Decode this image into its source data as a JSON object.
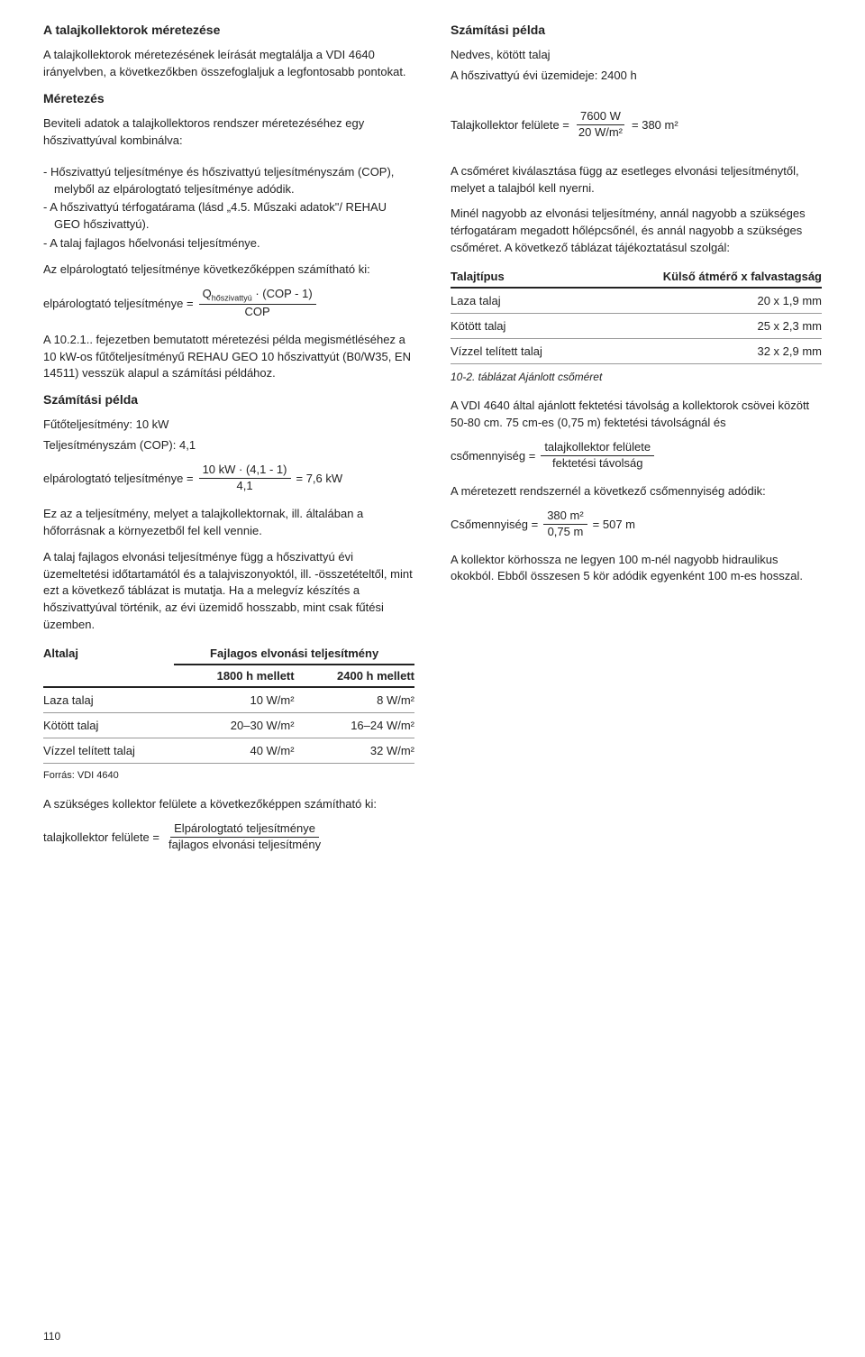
{
  "left": {
    "h_main": "A talajkollektorok méretezése",
    "p_intro": "A talajkollektorok méretezésének leírását megtalálja a VDI 4640 irányelvben, a következőkben összefoglaljuk a legfontosabb pontokat.",
    "h_sizing": "Méretezés",
    "p_sizing": "Beviteli adatok a talajkollektoros rendszer méretezéséhez egy hőszivattyúval kombinálva:",
    "li1": "Hőszivattyú teljesítménye és hőszivattyú teljesítményszám (COP), melyből az elpárologtató teljesítménye adódik.",
    "li2": "A hőszivattyú térfogatárama (lásd „4.5. Műszaki adatok\"/ REHAU GEO hőszivattyú).",
    "li3": "A talaj fajlagos hőelvonási teljesítménye.",
    "p_evap": "Az elpárologtató teljesítménye következőképpen számítható ki:",
    "f1_lhs": "elpárologtató teljesítménye  =",
    "f1_num_a": "Q",
    "f1_num_sub": "hőszivattyú",
    "f1_num_b": " · (COP - 1)",
    "f1_den": "COP",
    "p_ex_intro": "A 10.2.1.. fejezetben bemutatott méretezési példa megismétléséhez a 10 kW-os fűtőteljesítményű REHAU GEO 10 hőszivattyút (B0/W35, EN 14511) vesszük alapul a számítási példához.",
    "h_ex1": "Számítási példa",
    "p_ex1a": "Fűtőteljesítmény: 10 kW",
    "p_ex1b": "Teljesítményszám (COP): 4,1",
    "f2_lhs": "elpárologtató teljesítménye  =",
    "f2_num": "10 kW · (4,1 - 1)",
    "f2_den": "4,1",
    "f2_rhs": "=  7,6 kW",
    "p_after1": "Ez az a teljesítmény, melyet a talajkollektornak, ill. általában a hőforrásnak a környezetből fel kell vennie.",
    "p_after2": "A talaj fajlagos elvonási teljesítménye függ a hőszivattyú évi üzemeltetési időtartamától és a talajviszonyoktól, ill. -összetételtől, mint ezt a következő táblázat is mutatja. Ha a melegvíz készítés a hőszivattyúval történik, az évi üzemidő hosszabb, mint csak fűtési üzemben.",
    "tab1": {
      "h0": "Altalaj",
      "h1": "Fajlagos elvonási teljesítmény",
      "h1a": "1800 h mellett",
      "h1b": "2400 h mellett",
      "rows": [
        [
          "Laza talaj",
          "10 W/m²",
          "8 W/m²"
        ],
        [
          "Kötött talaj",
          "20–30 W/m²",
          "16–24 W/m²"
        ],
        [
          "Vízzel telített talaj",
          "40 W/m²",
          "32 W/m²"
        ]
      ]
    },
    "src1": "Forrás: VDI 4640",
    "p_area": "A szükséges kollektor felülete a következőképpen számítható ki:",
    "f3_lhs": "talajkollektor felülete  =",
    "f3_num": "Elpárologtató teljesítménye",
    "f3_den": "fajlagos elvonási teljesítmény"
  },
  "right": {
    "h_ex2": "Számítási példa",
    "p_ex2a": "Nedves, kötött talaj",
    "p_ex2b": "A hőszivattyú évi üzemideje: 2400 h",
    "f4_lhs": "Talajkollektor felülete  =",
    "f4_num": "7600 W",
    "f4_den": "20 W/m²",
    "f4_rhs": "= 380 m²",
    "p_r1": "A csőméret kiválasztása függ az esetleges elvonási teljesítménytől, melyet a talajból kell nyerni.",
    "p_r2": "Minél nagyobb az elvonási teljesítmény, annál nagyobb a szükséges térfogatáram megadott hőlépcsőnél, és annál nagyobb a szükséges csőméret. A következő táblázat tájékoztatásul szolgál:",
    "tab2": {
      "h0": "Talajtípus",
      "h1": "Külső átmérő x falvastagság",
      "rows": [
        [
          "Laza talaj",
          "20 x 1,9 mm"
        ],
        [
          "Kötött talaj",
          "25 x 2,3 mm"
        ],
        [
          "Vízzel telített talaj",
          "32 x 2,9 mm"
        ]
      ]
    },
    "cap2": "10-2. táblázat Ajánlott csőméret",
    "p_r3": "A VDI 4640 által ajánlott fektetési távolság a kollektorok csövei között 50-80 cm. 75 cm-es (0,75 m) fektetési távolságnál és",
    "f5_lhs": "csőmennyiség =",
    "f5_num": "talajkollektor felülete",
    "f5_den": "fektetési távolság",
    "p_r4": "A méretezett rendszernél a következő csőmennyiség adódik:",
    "f6_lhs": "Csőmennyiség =",
    "f6_num": "380 m²",
    "f6_den": "0,75 m",
    "f6_rhs": "= 507 m",
    "p_r5": "A kollektor körhossza ne legyen 100 m-nél nagyobb hidraulikus okokból. Ebből összesen 5 kör adódik egyenként 100 m-es hosszal."
  },
  "page_no": "110"
}
